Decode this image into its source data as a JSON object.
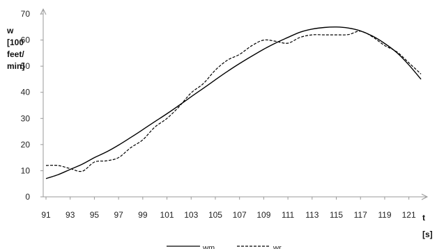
{
  "chart_data": {
    "type": "line",
    "title": "",
    "ylabel_lines": [
      "w",
      "[100",
      "feet/",
      "min]"
    ],
    "xlabel_lines": [
      "t",
      "[s]"
    ],
    "ylim": [
      0,
      70
    ],
    "yticks": [
      0,
      10,
      20,
      30,
      40,
      50,
      60,
      70
    ],
    "xlim": [
      91,
      122
    ],
    "xticks": [
      91,
      93,
      95,
      97,
      99,
      101,
      103,
      105,
      107,
      109,
      111,
      113,
      115,
      117,
      119,
      121
    ],
    "grid": false,
    "legend_position": "bottom",
    "series": [
      {
        "name": "wm",
        "style": "solid",
        "color": "#000000",
        "x": [
          91,
          92,
          93,
          94,
          95,
          96,
          97,
          98,
          99,
          100,
          101,
          102,
          103,
          104,
          105,
          106,
          107,
          108,
          109,
          110,
          111,
          112,
          113,
          114,
          115,
          116,
          117,
          118,
          119,
          120,
          121,
          122
        ],
        "y": [
          7,
          8.5,
          10.5,
          12.5,
          15,
          17.2,
          19.8,
          22.7,
          25.7,
          28.8,
          31.8,
          35,
          38.3,
          41.5,
          44.8,
          48,
          51,
          53.8,
          56.5,
          58.9,
          61,
          63,
          64.2,
          64.8,
          65,
          64.6,
          63.5,
          61.5,
          58.7,
          55.2,
          50.5,
          45
        ]
      },
      {
        "name": "wr",
        "style": "dashed",
        "color": "#000000",
        "x": [
          91,
          92,
          93,
          94,
          95,
          96,
          97,
          98,
          99,
          100,
          101,
          102,
          103,
          104,
          105,
          106,
          107,
          108,
          109,
          110,
          111,
          112,
          113,
          114,
          115,
          116,
          117,
          118,
          119,
          120,
          121,
          122
        ],
        "y": [
          12,
          12,
          10.8,
          9.8,
          13.3,
          13.8,
          15,
          18.8,
          21.8,
          26.7,
          30,
          34.5,
          39.8,
          43.3,
          48.5,
          52.3,
          54.5,
          57.8,
          60,
          59.5,
          58.8,
          61,
          62,
          62,
          62,
          62.1,
          63.4,
          61.2,
          57.9,
          55.5,
          51.3,
          47
        ]
      }
    ]
  }
}
